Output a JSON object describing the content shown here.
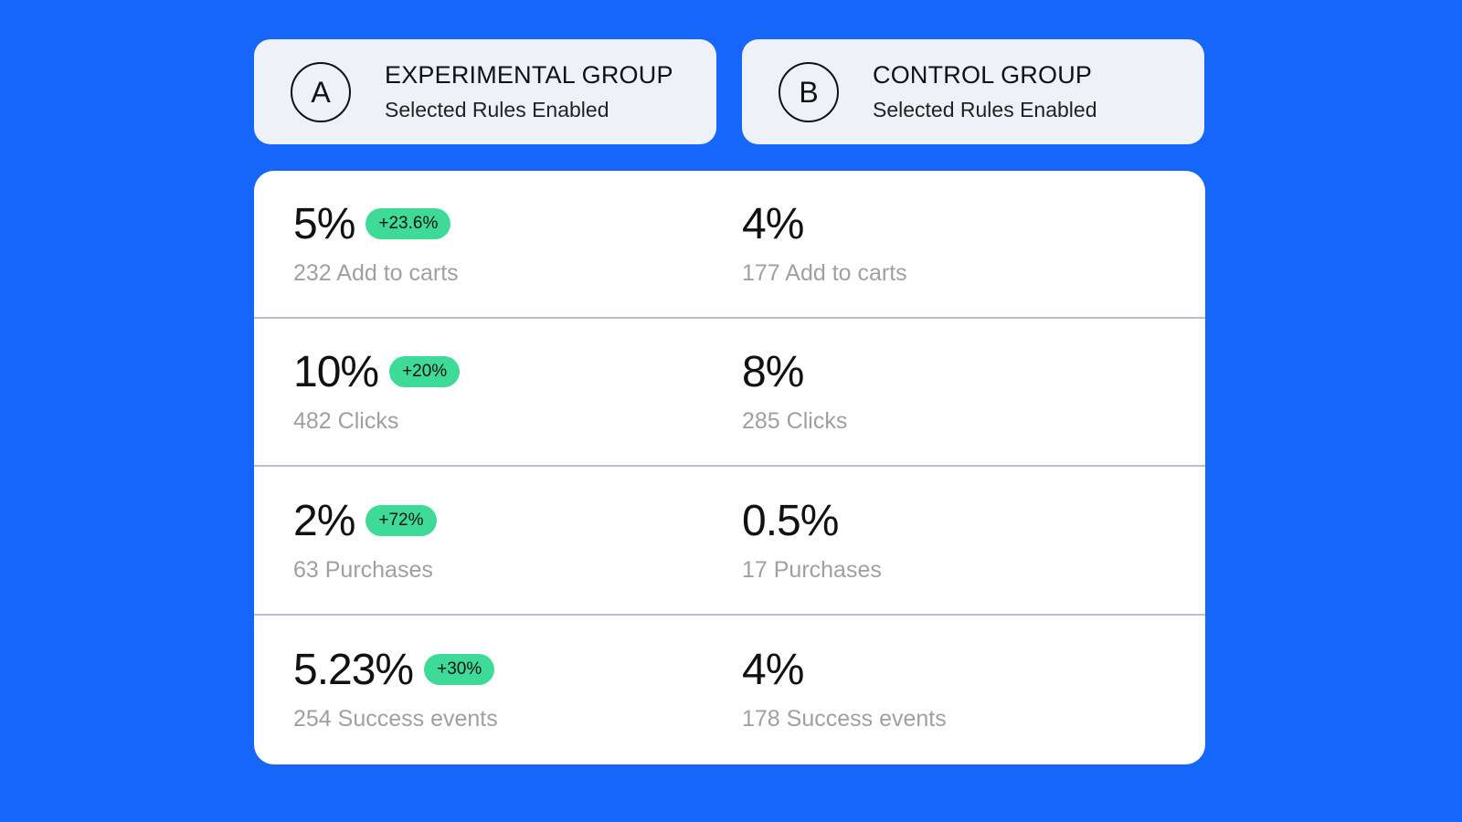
{
  "groups": [
    {
      "letter": "A",
      "title": "EXPERIMENTAL GROUP",
      "subtitle": "Selected Rules Enabled"
    },
    {
      "letter": "B",
      "title": "CONTROL GROUP",
      "subtitle": "Selected Rules Enabled"
    }
  ],
  "rows": [
    {
      "a_value": "5%",
      "a_badge": "+23.6%",
      "a_sub": "232 Add to carts",
      "b_value": "4%",
      "b_sub": "177 Add to carts"
    },
    {
      "a_value": "10%",
      "a_badge": "+20%",
      "a_sub": "482 Clicks",
      "b_value": "8%",
      "b_sub": "285 Clicks"
    },
    {
      "a_value": "2%",
      "a_badge": "+72%",
      "a_sub": "63 Purchases",
      "b_value": "0.5%",
      "b_sub": "17 Purchases"
    },
    {
      "a_value": "5.23%",
      "a_badge": "+30%",
      "a_sub": "254 Success events",
      "b_value": "4%",
      "b_sub": "178 Success events"
    }
  ],
  "colors": {
    "background": "#1766fa",
    "badge": "#3ddb97",
    "header_card": "#eef2f8"
  }
}
